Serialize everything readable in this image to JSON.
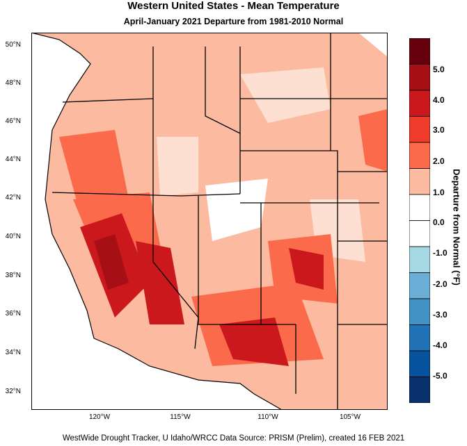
{
  "title": "Western United States - Mean Temperature",
  "subtitle": "April-January 2021  Departure from 1981-2010 Normal",
  "credit": "WestWide Drought Tracker, U Idaho/WRCC Data Source: PRISM (Prelim), created 16 FEB 2021",
  "latitude_labels": [
    "50°N",
    "48°N",
    "46°N",
    "44°N",
    "42°N",
    "40°N",
    "38°N",
    "36°N",
    "34°N",
    "32°N"
  ],
  "longitude_labels": [
    "120°W",
    "115°W",
    "110°W",
    "105°W"
  ],
  "legend": {
    "title": "Departure from Normal (°F)",
    "labels": [
      "5.0",
      "4.0",
      "3.0",
      "2.0",
      "1.0",
      "0.0",
      "-1.0",
      "-2.0",
      "-3.0",
      "-4.0",
      "-5.0"
    ],
    "colors": [
      "#67000d",
      "#a50f15",
      "#cb181d",
      "#ef3b2c",
      "#fb6a4a",
      "#fcbba1",
      "#ffffff",
      "#ffffff",
      "#a6d8e3",
      "#6baed6",
      "#4292c6",
      "#2171b5",
      "#08519c",
      "#08306b"
    ]
  },
  "colors": {
    "ocean": "#ffffff",
    "border": "#000000"
  }
}
